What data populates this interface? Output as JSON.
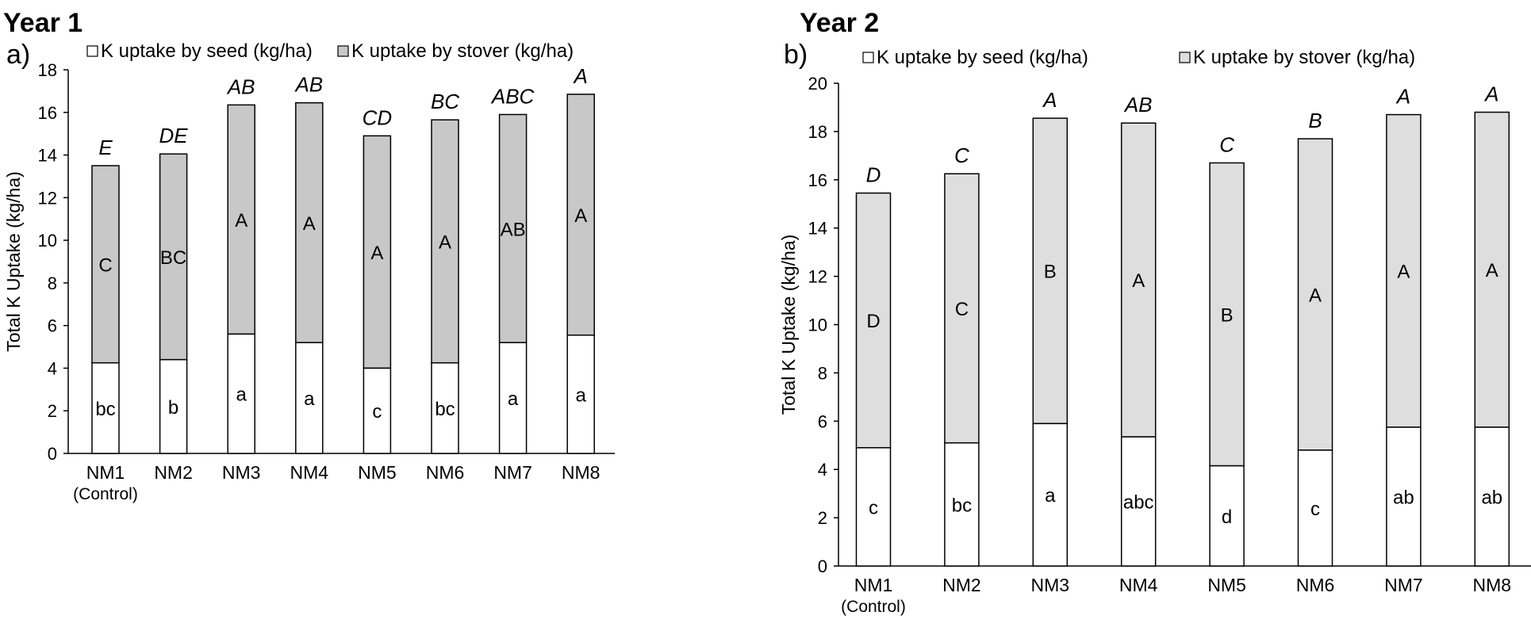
{
  "chart_data": [
    {
      "type": "bar",
      "stacked": true,
      "title": "Year 1",
      "panel_label": "a)",
      "ylabel": "Total K Uptake  (kg/ha)",
      "ylim": [
        0,
        18
      ],
      "yticks": [
        0,
        2,
        4,
        6,
        8,
        10,
        12,
        14,
        16,
        18
      ],
      "categories": [
        {
          "name": "NM1",
          "sub": "(Control)"
        },
        {
          "name": "NM2",
          "sub": ""
        },
        {
          "name": "NM3",
          "sub": ""
        },
        {
          "name": "NM4",
          "sub": ""
        },
        {
          "name": "NM5",
          "sub": ""
        },
        {
          "name": "NM6",
          "sub": ""
        },
        {
          "name": "NM7",
          "sub": ""
        },
        {
          "name": "NM8",
          "sub": ""
        }
      ],
      "series": [
        {
          "name": "K uptake by seed (kg/ha)",
          "color": "#ffffff",
          "values": [
            4.25,
            4.4,
            5.6,
            5.2,
            4.0,
            4.25,
            5.2,
            5.55
          ],
          "letters": [
            "bc",
            "b",
            "a",
            "a",
            "c",
            "bc",
            "a",
            "a"
          ]
        },
        {
          "name": "K uptake by stover (kg/ha)",
          "color": "#c8c8c8",
          "values": [
            9.25,
            9.65,
            10.75,
            11.25,
            10.9,
            11.4,
            10.7,
            11.3
          ],
          "letters": [
            "C",
            "BC",
            "A",
            "A",
            "A",
            "A",
            "AB",
            "A"
          ]
        }
      ],
      "total_letters": [
        "E",
        "DE",
        "AB",
        "AB",
        "CD",
        "BC",
        "ABC",
        "A"
      ]
    },
    {
      "type": "bar",
      "stacked": true,
      "title": "Year 2",
      "panel_label": "b)",
      "ylabel": "Total K Uptake  (kg/ha)",
      "ylim": [
        0,
        20
      ],
      "yticks": [
        0,
        2,
        4,
        6,
        8,
        10,
        12,
        14,
        16,
        18,
        20
      ],
      "categories": [
        {
          "name": "NM1",
          "sub": "(Control)"
        },
        {
          "name": "NM2",
          "sub": ""
        },
        {
          "name": "NM3",
          "sub": ""
        },
        {
          "name": "NM4",
          "sub": ""
        },
        {
          "name": "NM5",
          "sub": ""
        },
        {
          "name": "NM6",
          "sub": ""
        },
        {
          "name": "NM7",
          "sub": ""
        },
        {
          "name": "NM8",
          "sub": ""
        }
      ],
      "series": [
        {
          "name": "K uptake by seed (kg/ha)",
          "color": "#ffffff",
          "values": [
            4.9,
            5.1,
            5.9,
            5.35,
            4.15,
            4.8,
            5.75,
            5.75
          ],
          "letters": [
            "c",
            "bc",
            "a",
            "abc",
            "d",
            "c",
            "ab",
            "ab"
          ]
        },
        {
          "name": "K uptake by stover (kg/ha)",
          "color": "#dedede",
          "values": [
            10.55,
            11.15,
            12.65,
            13.0,
            12.55,
            12.9,
            12.95,
            13.05
          ],
          "letters": [
            "D",
            "C",
            "B",
            "A",
            "B",
            "A",
            "A",
            "A"
          ]
        }
      ],
      "total_letters": [
        "D",
        "C",
        "A",
        "AB",
        "C",
        "B",
        "A",
        "A"
      ]
    }
  ]
}
